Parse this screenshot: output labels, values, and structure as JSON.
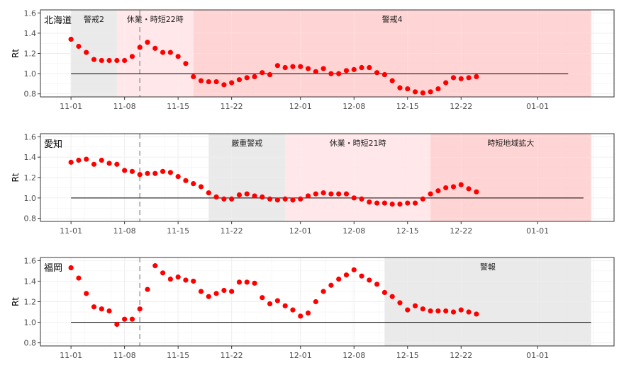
{
  "chart_data": [
    {
      "type": "scatter",
      "panel_label": "北海道",
      "ylabel": "Rt",
      "xlim": [
        "2020-10-28",
        "2021-01-11"
      ],
      "ylim": [
        0.77,
        1.63
      ],
      "yticks": [
        0.8,
        1.0,
        1.2,
        1.4,
        1.6
      ],
      "xticks": [
        "2020-11-01",
        "2020-11-08",
        "2020-11-15",
        "2020-11-22",
        "2020-12-01",
        "2020-12-08",
        "2020-12-15",
        "2020-12-22",
        "2021-01-01"
      ],
      "xtick_labels": [
        "11-01",
        "11-08",
        "11-15",
        "11-22",
        "12-01",
        "12-08",
        "12-15",
        "12-22",
        "01-01"
      ],
      "reference_line": {
        "y": 1.0,
        "x_start": "2020-11-01",
        "x_end": "2021-01-05"
      },
      "dashed_line": {
        "x": "2020-11-10"
      },
      "regions": [
        {
          "label": "警戒2",
          "start": "2020-11-01",
          "end": "2020-11-07",
          "color": "#e6e6e6"
        },
        {
          "label": "休業・時短22時",
          "start": "2020-11-07",
          "end": "2020-11-17",
          "color": "#ffe3e6"
        },
        {
          "label": "警戒4",
          "start": "2020-11-17",
          "end": "2021-01-08",
          "color": "#ffcccc"
        }
      ],
      "x": [
        "2020-11-01",
        "2020-11-02",
        "2020-11-03",
        "2020-11-04",
        "2020-11-05",
        "2020-11-06",
        "2020-11-07",
        "2020-11-08",
        "2020-11-09",
        "2020-11-10",
        "2020-11-11",
        "2020-11-12",
        "2020-11-13",
        "2020-11-14",
        "2020-11-15",
        "2020-11-16",
        "2020-11-17",
        "2020-11-18",
        "2020-11-19",
        "2020-11-20",
        "2020-11-21",
        "2020-11-22",
        "2020-11-23",
        "2020-11-24",
        "2020-11-25",
        "2020-11-26",
        "2020-11-27",
        "2020-11-28",
        "2020-11-29",
        "2020-11-30",
        "2020-12-01",
        "2020-12-02",
        "2020-12-03",
        "2020-12-04",
        "2020-12-05",
        "2020-12-06",
        "2020-12-07",
        "2020-12-08",
        "2020-12-09",
        "2020-12-10",
        "2020-12-11",
        "2020-12-12",
        "2020-12-13",
        "2020-12-14",
        "2020-12-15",
        "2020-12-16",
        "2020-12-17",
        "2020-12-18",
        "2020-12-19",
        "2020-12-20",
        "2020-12-21",
        "2020-12-22",
        "2020-12-23",
        "2020-12-24"
      ],
      "y": [
        1.34,
        1.27,
        1.21,
        1.14,
        1.13,
        1.13,
        1.13,
        1.13,
        1.17,
        1.26,
        1.31,
        1.25,
        1.21,
        1.21,
        1.17,
        1.1,
        0.97,
        0.93,
        0.92,
        0.92,
        0.89,
        0.91,
        0.94,
        0.96,
        0.97,
        1.01,
        0.99,
        1.08,
        1.06,
        1.07,
        1.07,
        1.05,
        1.02,
        1.05,
        1.0,
        1.0,
        1.03,
        1.04,
        1.06,
        1.06,
        1.01,
        0.99,
        0.93,
        0.86,
        0.85,
        0.82,
        0.81,
        0.82,
        0.85,
        0.91,
        0.96,
        0.95,
        0.96,
        0.97
      ]
    },
    {
      "type": "scatter",
      "panel_label": "愛知",
      "ylabel": "Rt",
      "xlim": [
        "2020-10-28",
        "2021-01-11"
      ],
      "ylim": [
        0.77,
        1.63
      ],
      "yticks": [
        0.8,
        1.0,
        1.2,
        1.4,
        1.6
      ],
      "xticks": [
        "2020-11-01",
        "2020-11-08",
        "2020-11-15",
        "2020-11-22",
        "2020-12-01",
        "2020-12-08",
        "2020-12-15",
        "2020-12-22",
        "2021-01-01"
      ],
      "xtick_labels": [
        "11-01",
        "11-08",
        "11-15",
        "11-22",
        "12-01",
        "12-08",
        "12-15",
        "12-22",
        "01-01"
      ],
      "reference_line": {
        "y": 1.0,
        "x_start": "2020-11-01",
        "x_end": "2021-01-07"
      },
      "dashed_line": {
        "x": "2020-11-10"
      },
      "regions": [
        {
          "label": "厳重警戒",
          "start": "2020-11-19",
          "end": "2020-11-29",
          "color": "#e6e6e6"
        },
        {
          "label": "休業・時短21時",
          "start": "2020-11-29",
          "end": "2020-12-18",
          "color": "#ffe3e6"
        },
        {
          "label": "時短地域拡大",
          "start": "2020-12-18",
          "end": "2021-01-08",
          "color": "#ffcccc"
        }
      ],
      "x": [
        "2020-11-01",
        "2020-11-02",
        "2020-11-03",
        "2020-11-04",
        "2020-11-05",
        "2020-11-06",
        "2020-11-07",
        "2020-11-08",
        "2020-11-09",
        "2020-11-10",
        "2020-11-11",
        "2020-11-12",
        "2020-11-13",
        "2020-11-14",
        "2020-11-15",
        "2020-11-16",
        "2020-11-17",
        "2020-11-18",
        "2020-11-19",
        "2020-11-20",
        "2020-11-21",
        "2020-11-22",
        "2020-11-23",
        "2020-11-24",
        "2020-11-25",
        "2020-11-26",
        "2020-11-27",
        "2020-11-28",
        "2020-11-29",
        "2020-11-30",
        "2020-12-01",
        "2020-12-02",
        "2020-12-03",
        "2020-12-04",
        "2020-12-05",
        "2020-12-06",
        "2020-12-07",
        "2020-12-08",
        "2020-12-09",
        "2020-12-10",
        "2020-12-11",
        "2020-12-12",
        "2020-12-13",
        "2020-12-14",
        "2020-12-15",
        "2020-12-16",
        "2020-12-17",
        "2020-12-18",
        "2020-12-19",
        "2020-12-20",
        "2020-12-21",
        "2020-12-22",
        "2020-12-23",
        "2020-12-24"
      ],
      "y": [
        1.35,
        1.37,
        1.38,
        1.33,
        1.37,
        1.34,
        1.33,
        1.27,
        1.26,
        1.23,
        1.24,
        1.24,
        1.26,
        1.25,
        1.21,
        1.17,
        1.14,
        1.11,
        1.05,
        1.01,
        0.99,
        0.99,
        1.03,
        1.04,
        1.02,
        1.01,
        0.99,
        0.98,
        0.99,
        0.98,
        0.99,
        1.02,
        1.04,
        1.05,
        1.04,
        1.04,
        1.04,
        1.0,
        0.99,
        0.96,
        0.95,
        0.95,
        0.94,
        0.94,
        0.95,
        0.95,
        0.99,
        1.04,
        1.07,
        1.1,
        1.11,
        1.13,
        1.09,
        1.06
      ]
    },
    {
      "type": "scatter",
      "panel_label": "福岡",
      "ylabel": "Rt",
      "xlim": [
        "2020-10-28",
        "2021-01-11"
      ],
      "ylim": [
        0.77,
        1.63
      ],
      "yticks": [
        0.8,
        1.0,
        1.2,
        1.4,
        1.6
      ],
      "xticks": [
        "2020-11-01",
        "2020-11-08",
        "2020-11-15",
        "2020-11-22",
        "2020-12-01",
        "2020-12-08",
        "2020-12-15",
        "2020-12-22",
        "2021-01-01"
      ],
      "xtick_labels": [
        "11-01",
        "11-08",
        "11-15",
        "11-22",
        "12-01",
        "12-08",
        "12-15",
        "12-22",
        "01-01"
      ],
      "reference_line": {
        "y": 1.0,
        "x_start": "2020-11-01",
        "x_end": "2021-01-08"
      },
      "dashed_line": {
        "x": "2020-11-10"
      },
      "regions": [
        {
          "label": "警報",
          "start": "2020-12-12",
          "end": "2021-01-08",
          "color": "#e6e6e6"
        }
      ],
      "x": [
        "2020-11-01",
        "2020-11-02",
        "2020-11-03",
        "2020-11-04",
        "2020-11-05",
        "2020-11-06",
        "2020-11-07",
        "2020-11-08",
        "2020-11-09",
        "2020-11-10",
        "2020-11-11",
        "2020-11-12",
        "2020-11-13",
        "2020-11-14",
        "2020-11-15",
        "2020-11-16",
        "2020-11-17",
        "2020-11-18",
        "2020-11-19",
        "2020-11-20",
        "2020-11-21",
        "2020-11-22",
        "2020-11-23",
        "2020-11-24",
        "2020-11-25",
        "2020-11-26",
        "2020-11-27",
        "2020-11-28",
        "2020-11-29",
        "2020-11-30",
        "2020-12-01",
        "2020-12-02",
        "2020-12-03",
        "2020-12-04",
        "2020-12-05",
        "2020-12-06",
        "2020-12-07",
        "2020-12-08",
        "2020-12-09",
        "2020-12-10",
        "2020-12-11",
        "2020-12-12",
        "2020-12-13",
        "2020-12-14",
        "2020-12-15",
        "2020-12-16",
        "2020-12-17",
        "2020-12-18",
        "2020-12-19",
        "2020-12-20",
        "2020-12-21",
        "2020-12-22",
        "2020-12-23",
        "2020-12-24"
      ],
      "y": [
        1.53,
        1.43,
        1.28,
        1.15,
        1.13,
        1.11,
        0.98,
        1.03,
        1.03,
        1.13,
        1.32,
        1.55,
        1.48,
        1.42,
        1.44,
        1.41,
        1.4,
        1.3,
        1.25,
        1.28,
        1.31,
        1.3,
        1.39,
        1.39,
        1.38,
        1.24,
        1.18,
        1.21,
        1.16,
        1.12,
        1.06,
        1.09,
        1.2,
        1.3,
        1.36,
        1.42,
        1.46,
        1.51,
        1.45,
        1.41,
        1.37,
        1.29,
        1.25,
        1.19,
        1.12,
        1.16,
        1.13,
        1.11,
        1.11,
        1.11,
        1.1,
        1.12,
        1.1,
        1.08
      ]
    }
  ]
}
